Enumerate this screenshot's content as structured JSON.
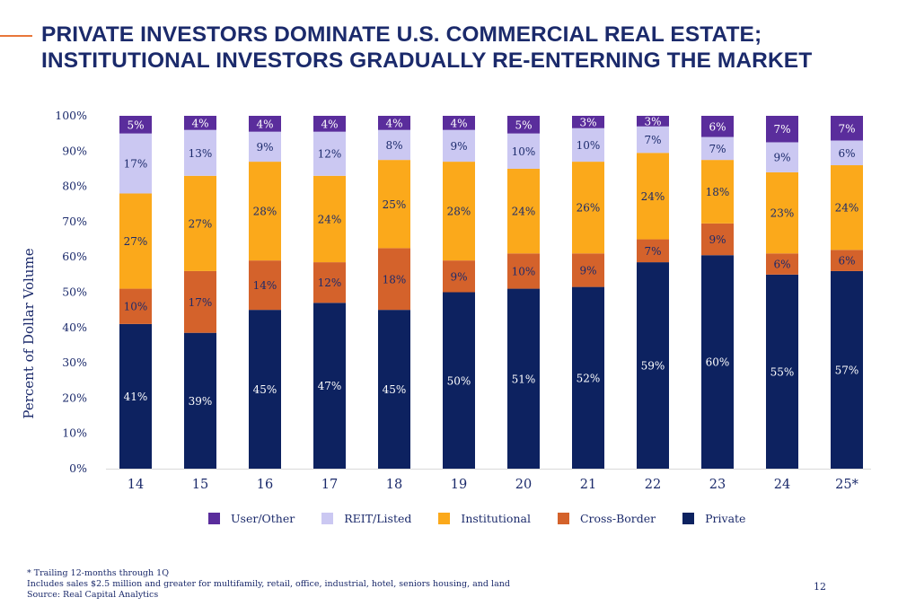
{
  "title": {
    "line1": "PRIVATE INVESTORS DOMINATE U.S. COMMERCIAL REAL ESTATE;",
    "line2": "INSTITUTIONAL INVESTORS GRADUALLY RE-ENTERNING THE MARKET"
  },
  "colors": {
    "accent_line": "#e8773a",
    "title": "#1b2a6b",
    "text": "#1b2a6b"
  },
  "chart_data": {
    "type": "bar",
    "stacked": true,
    "ylabel": "Percent of Dollar Volume",
    "xlabel": "",
    "ylim": [
      0,
      100
    ],
    "y_ticks": [
      "0%",
      "10%",
      "20%",
      "30%",
      "40%",
      "50%",
      "60%",
      "70%",
      "80%",
      "90%",
      "100%"
    ],
    "categories": [
      "14",
      "15",
      "16",
      "17",
      "18",
      "19",
      "20",
      "21",
      "22",
      "23",
      "24",
      "25*"
    ],
    "legend_position": "bottom",
    "grid": false,
    "series": [
      {
        "name": "Private",
        "color": "#0d2260",
        "label_color": "#ffffff",
        "values": [
          41,
          39,
          45,
          47,
          45,
          50,
          51,
          52,
          59,
          60,
          55,
          57
        ]
      },
      {
        "name": "Cross-Border",
        "color": "#d4622b",
        "label_color": "#1b2a6b",
        "values": [
          10,
          17,
          14,
          12,
          18,
          9,
          10,
          9,
          7,
          9,
          6,
          6
        ]
      },
      {
        "name": "Institutional",
        "color": "#fba91b",
        "label_color": "#1b2a6b",
        "values": [
          27,
          27,
          28,
          24,
          25,
          28,
          24,
          26,
          24,
          18,
          23,
          24
        ]
      },
      {
        "name": "REIT/Listed",
        "color": "#cbc8f2",
        "label_color": "#1b2a6b",
        "values": [
          17,
          13,
          9,
          12,
          8,
          9,
          10,
          10,
          7,
          7,
          9,
          6
        ]
      },
      {
        "name": "User/Other",
        "color": "#5a2d9c",
        "label_color": "#ffffff",
        "values": [
          5,
          4,
          4,
          4,
          4,
          4,
          5,
          3,
          3,
          6,
          7,
          7
        ]
      }
    ],
    "stack_tops": {
      "Private": [
        41,
        38.5,
        45,
        47,
        45,
        50,
        51,
        51.5,
        58.5,
        60.5,
        55,
        56
      ],
      "Cross-Border": [
        51,
        56,
        59,
        58.5,
        62.5,
        59,
        61,
        61,
        65,
        69.5,
        61,
        62
      ],
      "Institutional": [
        78,
        83,
        87,
        83,
        87.5,
        87,
        85,
        87,
        89.5,
        87.5,
        84,
        86
      ],
      "REIT/Listed": [
        95,
        96,
        95.5,
        95.5,
        96,
        96,
        95,
        96.5,
        97,
        94,
        92.5,
        93
      ],
      "User/Other": [
        100,
        100,
        100,
        100,
        100,
        100,
        100,
        100,
        100,
        100,
        100,
        100
      ]
    },
    "legend_order": [
      "User/Other",
      "REIT/Listed",
      "Institutional",
      "Cross-Border",
      "Private"
    ]
  },
  "footnotes": [
    " * Trailing 12-months through 1Q",
    "Includes sales $2.5 million and greater for multifamily, retail, office, industrial, hotel, seniors housing, and land",
    "Source: Real Capital Analytics"
  ],
  "page_number": "12"
}
